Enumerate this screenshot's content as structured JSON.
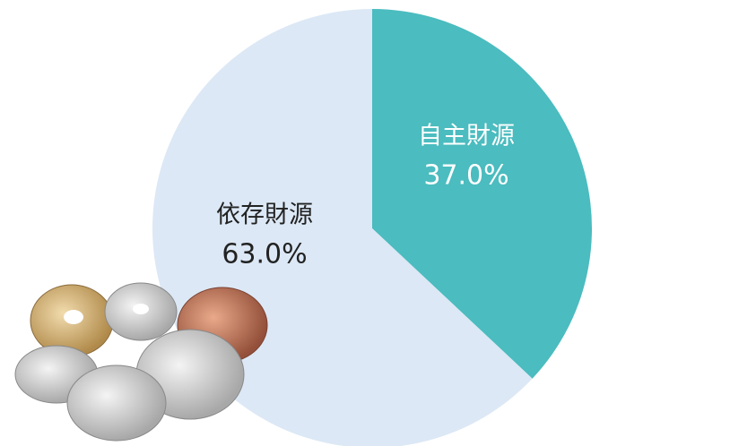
{
  "chart_data": {
    "type": "pie",
    "categories": [
      "自主財源",
      "依存財源"
    ],
    "values": [
      37.0,
      63.0
    ],
    "value_labels": [
      "37.0%",
      "63.0%"
    ],
    "colors": [
      "#4bbcbf",
      "#dce8f5"
    ]
  }
}
